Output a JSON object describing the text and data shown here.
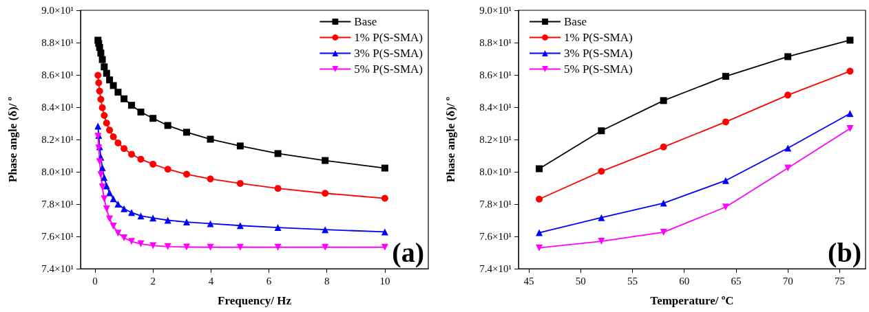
{
  "chart_data": [
    {
      "type": "line",
      "xlabel": "Frequency/ Hz",
      "ylabel": "Phase angle (δ)/ º",
      "x": [
        0.1,
        0.126,
        0.158,
        0.2,
        0.251,
        0.316,
        0.398,
        0.501,
        0.631,
        0.794,
        1,
        1.26,
        1.58,
        2,
        2.51,
        3.16,
        3.98,
        5.01,
        6.31,
        7.94,
        10
      ],
      "series": [
        {
          "name": "Base",
          "color": "#000000",
          "marker": "square",
          "values": [
            88.15,
            87.95,
            87.7,
            87.35,
            86.95,
            86.5,
            86.1,
            85.69,
            85.34,
            84.93,
            84.52,
            84.12,
            83.7,
            83.31,
            82.87,
            82.45,
            82.02,
            81.6,
            81.13,
            80.7,
            80.23
          ]
        },
        {
          "name": "1% P(S-SMA)",
          "color": "#ff0000",
          "marker": "circle",
          "values": [
            85.98,
            85.51,
            85.0,
            84.49,
            83.97,
            83.49,
            83.02,
            82.58,
            82.17,
            81.79,
            81.44,
            81.09,
            80.78,
            80.47,
            80.16,
            79.85,
            79.56,
            79.28,
            78.97,
            78.67,
            78.36
          ]
        },
        {
          "name": "3% P(S-SMA)",
          "color": "#0000ff",
          "marker": "triangle",
          "values": [
            82.83,
            82.26,
            81.55,
            80.9,
            80.26,
            79.65,
            79.13,
            78.7,
            78.33,
            78.0,
            77.71,
            77.48,
            77.27,
            77.14,
            77.0,
            76.89,
            76.79,
            76.67,
            76.55,
            76.42,
            76.28
          ]
        },
        {
          "name": "5% P(S-SMA)",
          "color": "#ff00ff",
          "marker": "triangle-down",
          "values": [
            82.2,
            81.48,
            80.63,
            79.82,
            79.06,
            78.33,
            77.7,
            77.08,
            76.64,
            76.2,
            75.91,
            75.69,
            75.54,
            75.43,
            75.37,
            75.34,
            75.33,
            75.33,
            75.33,
            75.33,
            75.33
          ]
        }
      ],
      "xlim": [
        -0.5,
        11.5
      ],
      "xticks": [
        0,
        2,
        4,
        6,
        8,
        10
      ],
      "ylim": [
        74,
        90
      ],
      "yticks": [
        {
          "value": 74,
          "label": "7.4×10¹"
        },
        {
          "value": 76,
          "label": "7.6×10¹"
        },
        {
          "value": 78,
          "label": "7.8×10¹"
        },
        {
          "value": 80,
          "label": "8.0×10¹"
        },
        {
          "value": 82,
          "label": "8.2×10¹"
        },
        {
          "value": 84,
          "label": "8.4×10¹"
        },
        {
          "value": 86,
          "label": "8.6×10¹"
        },
        {
          "value": 88,
          "label": "8.8×10¹"
        },
        {
          "value": 90,
          "label": "9.0×10¹"
        }
      ],
      "grid": false,
      "legend": "top right",
      "line_style": "solid",
      "annotations": [
        "(a)"
      ]
    },
    {
      "type": "line",
      "xlabel": "Temperature/ ºC",
      "ylabel": "Phase angle (δ)/ º",
      "x": [
        46,
        52,
        58,
        64,
        70,
        76
      ],
      "series": [
        {
          "name": "Base",
          "color": "#000000",
          "marker": "square",
          "values": [
            80.19,
            82.54,
            84.41,
            85.91,
            87.13,
            88.15
          ]
        },
        {
          "name": "1% P(S-SMA)",
          "color": "#ff0000",
          "marker": "circle",
          "values": [
            78.31,
            80.03,
            81.54,
            83.09,
            84.75,
            86.23
          ]
        },
        {
          "name": "3% P(S-SMA)",
          "color": "#0000ff",
          "marker": "triangle",
          "values": [
            76.23,
            77.16,
            78.06,
            79.46,
            81.47,
            83.61
          ]
        },
        {
          "name": "5% P(S-SMA)",
          "color": "#ff00ff",
          "marker": "triangle-down",
          "values": [
            75.29,
            75.7,
            76.26,
            77.82,
            80.23,
            82.68
          ]
        }
      ],
      "xlim": [
        44,
        77.5
      ],
      "xticks": [
        45,
        50,
        55,
        60,
        65,
        70,
        75
      ],
      "ylim": [
        74,
        90
      ],
      "yticks": [
        {
          "value": 74,
          "label": "7.4×10¹"
        },
        {
          "value": 76,
          "label": "7.6×10¹"
        },
        {
          "value": 78,
          "label": "7.8×10¹"
        },
        {
          "value": 80,
          "label": "8.0×10¹"
        },
        {
          "value": 82,
          "label": "8.2×10¹"
        },
        {
          "value": 84,
          "label": "8.4×10¹"
        },
        {
          "value": 86,
          "label": "8.6×10¹"
        },
        {
          "value": 88,
          "label": "8.8×10¹"
        },
        {
          "value": 90,
          "label": "9.0×10¹"
        }
      ],
      "grid": false,
      "legend": "top left",
      "line_style": "solid",
      "annotations": [
        "(b)"
      ]
    }
  ]
}
